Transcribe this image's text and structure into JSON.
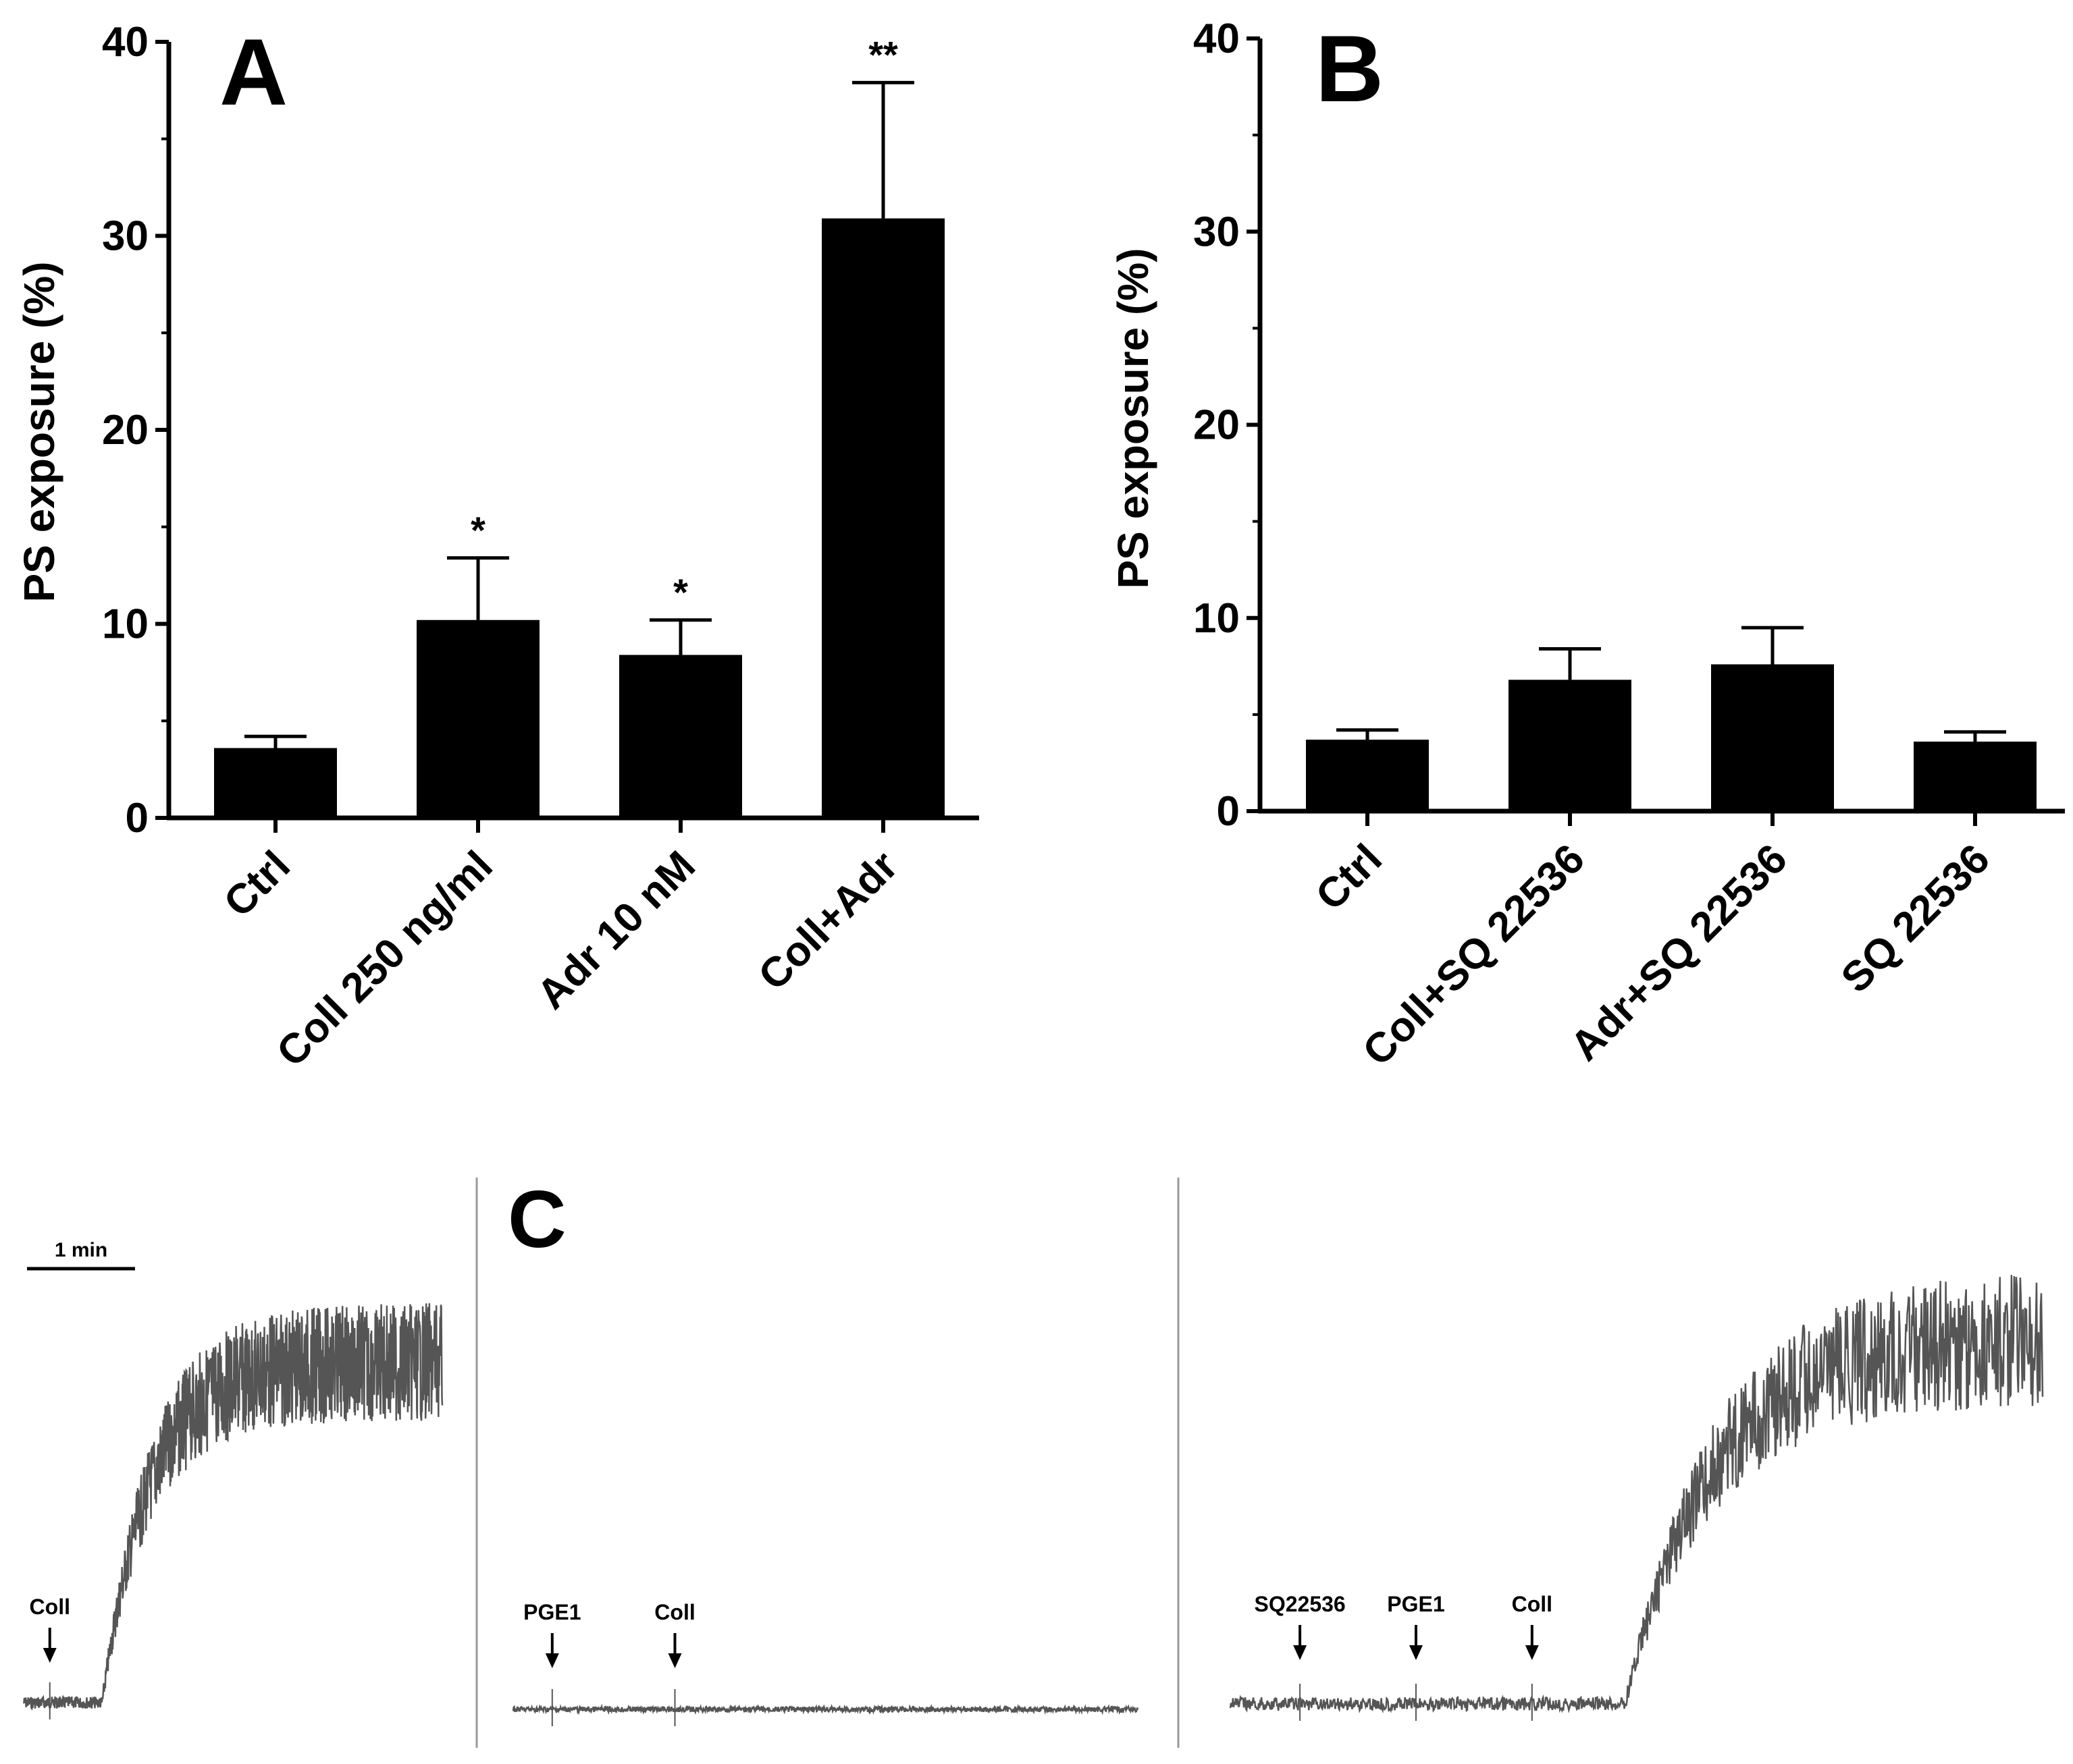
{
  "figure": {
    "panel_a_label": "A",
    "panel_b_label": "B",
    "panel_c_label": "C"
  },
  "chart_data": [
    {
      "panel": "A",
      "type": "bar",
      "title": "",
      "xlabel": "",
      "ylabel": "PS exposure (%)",
      "ylim": [
        0,
        40
      ],
      "yticks": [
        "0",
        "10",
        "20",
        "30",
        "40"
      ],
      "categories": [
        "Ctrl",
        "Coll 250 ng/ml",
        "Adr 10 nM",
        "Coll+Adr"
      ],
      "values": [
        3.6,
        10.2,
        8.4,
        30.9
      ],
      "errors": [
        0.6,
        3.2,
        1.8,
        7.0
      ],
      "significance": [
        "",
        "*",
        "*",
        "**"
      ],
      "bar_color": "#000000"
    },
    {
      "panel": "B",
      "type": "bar",
      "title": "",
      "xlabel": "",
      "ylabel": "PS exposure (%)",
      "ylim": [
        0,
        40
      ],
      "yticks": [
        "0",
        "10",
        "20",
        "30",
        "40"
      ],
      "categories": [
        "Ctrl",
        "Coll+SQ 22536",
        "Adr+SQ 22536",
        "SQ 22536"
      ],
      "values": [
        3.7,
        6.8,
        7.6,
        3.6
      ],
      "errors": [
        0.5,
        1.6,
        1.9,
        0.5
      ],
      "significance": [
        "",
        "",
        "",
        ""
      ],
      "bar_color": "#000000"
    },
    {
      "panel": "C",
      "type": "line",
      "title": "",
      "xlabel": "",
      "ylabel": "",
      "scale_bar_label": "1 min",
      "trace_color": "#555555",
      "traces": [
        {
          "name": "Coll",
          "markers": [
            "Coll"
          ],
          "marker_times": [
            0.25
          ],
          "duration": 4.0,
          "shape": {
            "onset": 0.75,
            "rise": 0.45,
            "plateau": 0.88,
            "noise": 0.07
          }
        },
        {
          "name": "PGE1 + Coll",
          "markers": [
            "PGE1",
            "Coll"
          ],
          "marker_times": [
            0.35,
            1.45
          ],
          "duration": 5.6,
          "shape": {
            "onset": 99,
            "rise": 1,
            "plateau": 0.0,
            "noise": 0.012
          }
        },
        {
          "name": "SQ22536 + PGE1 + Coll",
          "markers": [
            "SQ22536",
            "PGE1",
            "Coll"
          ],
          "marker_times": [
            0.6,
            1.6,
            2.6
          ],
          "duration": 7.0,
          "shape": {
            "onset": 3.4,
            "rise": 0.75,
            "plateau": 0.9,
            "noise": 0.07
          }
        }
      ]
    }
  ]
}
